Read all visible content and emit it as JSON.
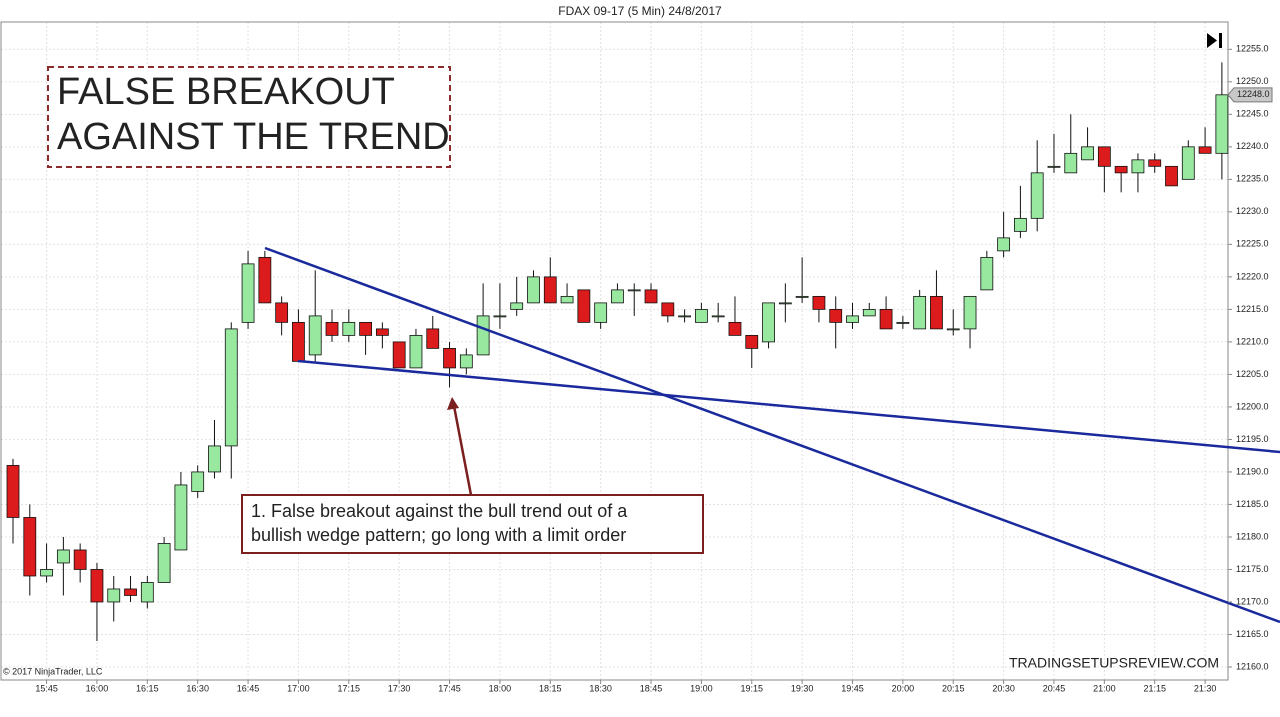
{
  "chart_data": {
    "type": "candlestick",
    "title": "FDAX 09-17 (5 Min)  24/8/2017",
    "headline": [
      "FALSE BREAKOUT",
      "AGAINST THE TREND"
    ],
    "note": [
      "1. False breakout against the bull trend out of a",
      "bullish wedge pattern; go long with a limit order"
    ],
    "copyright": "© 2017 NinjaTrader, LLC",
    "watermark": "TRADINGSETUPSREVIEW.COM",
    "up_color": "#98e89f",
    "down_color": "#dc1c1c",
    "grid": true,
    "categories": [
      null,
      null,
      "15:45",
      null,
      null,
      "16:00",
      null,
      null,
      "16:15",
      null,
      null,
      "16:30",
      null,
      null,
      "16:45",
      null,
      null,
      "17:00",
      null,
      null,
      "17:15",
      null,
      null,
      "17:30",
      null,
      null,
      "17:45",
      null,
      null,
      "18:00",
      null,
      null,
      "18:15",
      null,
      null,
      "18:30",
      null,
      null,
      "18:45",
      null,
      null,
      "19:00",
      null,
      null,
      "19:15",
      null,
      null,
      "19:30",
      null,
      null,
      "19:45",
      null,
      null,
      "20:00",
      null,
      null,
      "20:15",
      null,
      null,
      "20:30",
      null,
      null,
      "20:45",
      null,
      null,
      "21:00",
      null,
      null,
      "21:15",
      null,
      null,
      "21:30",
      null
    ],
    "open": [
      12191,
      12183,
      12174,
      12176,
      12178,
      12175,
      12170,
      12172,
      12170,
      12173,
      12178,
      12187,
      12190,
      12194,
      12213,
      12223,
      12216,
      12213,
      12208,
      12213,
      12211,
      12213,
      12212,
      12210,
      12206,
      12212,
      12209,
      12206,
      12208,
      12214,
      12215,
      12216,
      12220,
      12216,
      12218,
      12213,
      12216,
      12218,
      12218,
      12216,
      12214,
      12213,
      12214,
      12213,
      12211,
      12210,
      12216,
      12217,
      12217,
      12215,
      12213,
      12214,
      12215,
      12213,
      12212,
      12217,
      12212,
      12212,
      12218,
      12224,
      12227,
      12229,
      12237,
      12236,
      12238,
      12240,
      12237,
      12236,
      12238,
      12237,
      12235,
      12240,
      12239
    ],
    "high": [
      12192,
      12185,
      12179,
      12180,
      12179,
      12176,
      12174,
      12174,
      12174,
      12180,
      12190,
      12191,
      12198,
      12213,
      12224,
      12224,
      12217,
      12215,
      12221,
      12215,
      12215,
      12213,
      12213,
      12210,
      12212,
      12214,
      12210,
      12209,
      12219,
      12219,
      12220,
      12221,
      12223,
      12219,
      12218,
      12216,
      12219,
      12219,
      12219,
      12216,
      12215,
      12216,
      12216,
      12217,
      12211,
      12216,
      12219,
      12223,
      12217,
      12217,
      12216,
      12216,
      12217,
      12214,
      12218,
      12221,
      12215,
      12217,
      12224,
      12230,
      12234,
      12241,
      12242,
      12245,
      12243,
      12240,
      12237,
      12239,
      12239,
      12237,
      12241,
      12243,
      12253
    ],
    "low": [
      12179,
      12171,
      12173,
      12171,
      12173,
      12164,
      12167,
      12170,
      12169,
      12173,
      12178,
      12186,
      12189,
      12189,
      12212,
      12216,
      12211,
      12207,
      12207,
      12210,
      12210,
      12208,
      12209,
      12206,
      12206,
      12209,
      12203,
      12205,
      12208,
      12212,
      12214,
      12216,
      12216,
      12216,
      12213,
      12212,
      12216,
      12214,
      12216,
      12213,
      12213,
      12213,
      12213,
      12211,
      12206,
      12209,
      12213,
      12216,
      12213,
      12209,
      12212,
      12214,
      12212,
      12212,
      12212,
      12212,
      12211,
      12209,
      12218,
      12223,
      12226,
      12227,
      12236,
      12236,
      12238,
      12233,
      12233,
      12233,
      12236,
      12234,
      12235,
      12239,
      12235
    ],
    "close": [
      12183,
      12174,
      12175,
      12178,
      12175,
      12170,
      12172,
      12171,
      12173,
      12179,
      12188,
      12190,
      12194,
      12212,
      12222,
      12216,
      12213,
      12207,
      12214,
      12211,
      12213,
      12211,
      12211,
      12206,
      12211,
      12209,
      12206,
      12208,
      12214,
      12214,
      12216,
      12220,
      12216,
      12217,
      12213,
      12216,
      12218,
      12218,
      12216,
      12214,
      12214,
      12215,
      12214,
      12211,
      12209,
      12216,
      12216,
      12217,
      12215,
      12213,
      12214,
      12215,
      12212,
      12213,
      12217,
      12212,
      12212,
      12217,
      12223,
      12226,
      12229,
      12236,
      12237,
      12239,
      12240,
      12237,
      12236,
      12238,
      12237,
      12234,
      12240,
      12239,
      12248
    ],
    "last_price": {
      "value": 12248,
      "label": "12248.0"
    },
    "ylim": [
      12158,
      12259.2
    ],
    "yticks": [
      {
        "value": 12160,
        "label": "12160.0"
      },
      {
        "value": 12165,
        "label": "12165.0"
      },
      {
        "value": 12170,
        "label": "12170.0"
      },
      {
        "value": 12175,
        "label": "12175.0"
      },
      {
        "value": 12180,
        "label": "12180.0"
      },
      {
        "value": 12185,
        "label": "12185.0"
      },
      {
        "value": 12190,
        "label": "12190.0"
      },
      {
        "value": 12195,
        "label": "12195.0"
      },
      {
        "value": 12200,
        "label": "12200.0"
      },
      {
        "value": 12205,
        "label": "12205.0"
      },
      {
        "value": 12210,
        "label": "12210.0"
      },
      {
        "value": 12215,
        "label": "12215.0"
      },
      {
        "value": 12220,
        "label": "12220.0"
      },
      {
        "value": 12225,
        "label": "12225.0"
      },
      {
        "value": 12230,
        "label": "12230.0"
      },
      {
        "value": 12235,
        "label": "12235.0"
      },
      {
        "value": 12240,
        "label": "12240.0"
      },
      {
        "value": 12245,
        "label": "12245.0"
      },
      {
        "value": 12250,
        "label": "12250.0"
      },
      {
        "value": 12255,
        "label": "12255.0"
      }
    ]
  }
}
